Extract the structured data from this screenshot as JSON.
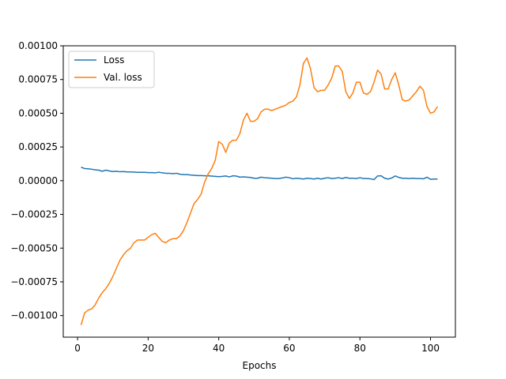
{
  "chart_data": {
    "type": "line",
    "title": "",
    "xlabel": "Epochs",
    "ylabel": "",
    "xlim": [
      -4.05,
      107.05
    ],
    "ylim": [
      -0.00116,
      0.001
    ],
    "xticks": [
      0,
      20,
      40,
      60,
      80,
      100
    ],
    "yticks": [
      -0.001,
      -0.00075,
      -0.0005,
      -0.00025,
      0.0,
      0.00025,
      0.0005,
      0.00075,
      0.001
    ],
    "ytick_labels": [
      "−0.00100",
      "−0.00075",
      "−0.00050",
      "−0.00025",
      "0.00000",
      "0.00025",
      "0.00050",
      "0.00075",
      "0.00100"
    ],
    "grid": false,
    "legend_position": "upper-left",
    "series": [
      {
        "name": "Loss",
        "color": "#1f77b4",
        "x": [
          1,
          2,
          3,
          4,
          5,
          6,
          7,
          8,
          9,
          10,
          11,
          12,
          13,
          14,
          15,
          16,
          17,
          18,
          19,
          20,
          21,
          22,
          23,
          24,
          25,
          26,
          27,
          28,
          29,
          30,
          31,
          32,
          33,
          34,
          35,
          36,
          37,
          38,
          39,
          40,
          41,
          42,
          43,
          44,
          45,
          46,
          47,
          48,
          49,
          50,
          51,
          52,
          53,
          54,
          55,
          56,
          57,
          58,
          59,
          60,
          61,
          62,
          63,
          64,
          65,
          66,
          67,
          68,
          69,
          70,
          71,
          72,
          73,
          74,
          75,
          76,
          77,
          78,
          79,
          80,
          81,
          82,
          83,
          84,
          85,
          86,
          87,
          88,
          89,
          90,
          91,
          92,
          93,
          94,
          95,
          96,
          97,
          98,
          99,
          100,
          101,
          102
        ],
        "y": [
          0.0001,
          9e-05,
          8.8e-05,
          8.5e-05,
          8e-05,
          7.8e-05,
          7e-05,
          7.8e-05,
          7.2e-05,
          6.8e-05,
          7e-05,
          6.6e-05,
          6.8e-05,
          6.5e-05,
          6.5e-05,
          6.4e-05,
          6.2e-05,
          6.2e-05,
          6.2e-05,
          6e-05,
          6e-05,
          5.8e-05,
          6.3e-05,
          5.8e-05,
          5.5e-05,
          5.5e-05,
          5.2e-05,
          5.5e-05,
          4.8e-05,
          4.5e-05,
          4.5e-05,
          4.2e-05,
          4e-05,
          3.8e-05,
          3.8e-05,
          3.6e-05,
          3.6e-05,
          3.4e-05,
          3.2e-05,
          3e-05,
          3.2e-05,
          3.5e-05,
          2.8e-05,
          3.6e-05,
          3.4e-05,
          2.6e-05,
          2.8e-05,
          2.6e-05,
          2.4e-05,
          1.8e-05,
          1.8e-05,
          2.6e-05,
          2.2e-05,
          2e-05,
          1.8e-05,
          1.6e-05,
          1.6e-05,
          2e-05,
          2.6e-05,
          2.2e-05,
          1.4e-05,
          1.8e-05,
          1.6e-05,
          1.2e-05,
          1.8e-05,
          1.6e-05,
          1.2e-05,
          1.8e-05,
          1.2e-05,
          1.8e-05,
          2.2e-05,
          1.6e-05,
          1.8e-05,
          2.2e-05,
          1.6e-05,
          2.4e-05,
          1.8e-05,
          1.8e-05,
          1.6e-05,
          2.2e-05,
          1.6e-05,
          1.6e-05,
          1.4e-05,
          8e-06,
          3.5e-05,
          3.6e-05,
          1.8e-05,
          1.2e-05,
          2e-05,
          3.5e-05,
          2.4e-05,
          1.8e-05,
          1.8e-05,
          1.6e-05,
          1.8e-05,
          1.6e-05,
          1.6e-05,
          1.4e-05,
          2.6e-05,
          1e-05,
          1.2e-05,
          1.2e-05
        ]
      },
      {
        "name": "Val. loss",
        "color": "#ff7f0e",
        "x": [
          1,
          2,
          3,
          4,
          5,
          6,
          7,
          8,
          9,
          10,
          11,
          12,
          13,
          14,
          15,
          16,
          17,
          18,
          19,
          20,
          21,
          22,
          23,
          24,
          25,
          26,
          27,
          28,
          29,
          30,
          31,
          32,
          33,
          34,
          35,
          36,
          37,
          38,
          39,
          40,
          41,
          42,
          43,
          44,
          45,
          46,
          47,
          48,
          49,
          50,
          51,
          52,
          53,
          54,
          55,
          56,
          57,
          58,
          59,
          60,
          61,
          62,
          63,
          64,
          65,
          66,
          67,
          68,
          69,
          70,
          71,
          72,
          73,
          74,
          75,
          76,
          77,
          78,
          79,
          80,
          81,
          82,
          83,
          84,
          85,
          86,
          87,
          88,
          89,
          90,
          91,
          92,
          93,
          94,
          95,
          96,
          97,
          98,
          99,
          100,
          101,
          102
        ],
        "y": [
          -0.00107,
          -0.00098,
          -0.00096,
          -0.00095,
          -0.00092,
          -0.00087,
          -0.00083,
          -0.0008,
          -0.00076,
          -0.00071,
          -0.00065,
          -0.00059,
          -0.00055,
          -0.00052,
          -0.0005,
          -0.00046,
          -0.00044,
          -0.00044,
          -0.00044,
          -0.00042,
          -0.0004,
          -0.00039,
          -0.00042,
          -0.00045,
          -0.00046,
          -0.00044,
          -0.00043,
          -0.00043,
          -0.00041,
          -0.00037,
          -0.00031,
          -0.00024,
          -0.00017,
          -0.00014,
          -0.0001,
          -1e-05,
          5e-05,
          9e-05,
          0.00015,
          0.00029,
          0.00027,
          0.00021,
          0.00028,
          0.0003,
          0.0003,
          0.00035,
          0.00045,
          0.0005,
          0.00044,
          0.00044,
          0.00046,
          0.00051,
          0.00053,
          0.00053,
          0.00052,
          0.00053,
          0.00054,
          0.00055,
          0.00056,
          0.00058,
          0.00059,
          0.00062,
          0.00071,
          0.00087,
          0.00091,
          0.00083,
          0.00069,
          0.00066,
          0.00067,
          0.00067,
          0.00071,
          0.00076,
          0.00085,
          0.00085,
          0.00081,
          0.00066,
          0.00061,
          0.00065,
          0.00073,
          0.00073,
          0.00065,
          0.00064,
          0.00066,
          0.00073,
          0.00082,
          0.00079,
          0.00068,
          0.00068,
          0.00075,
          0.0008,
          0.00071,
          0.0006,
          0.00059,
          0.0006,
          0.00063,
          0.00066,
          0.0007,
          0.00067,
          0.00055,
          0.0005,
          0.00051,
          0.00055
        ]
      }
    ]
  }
}
